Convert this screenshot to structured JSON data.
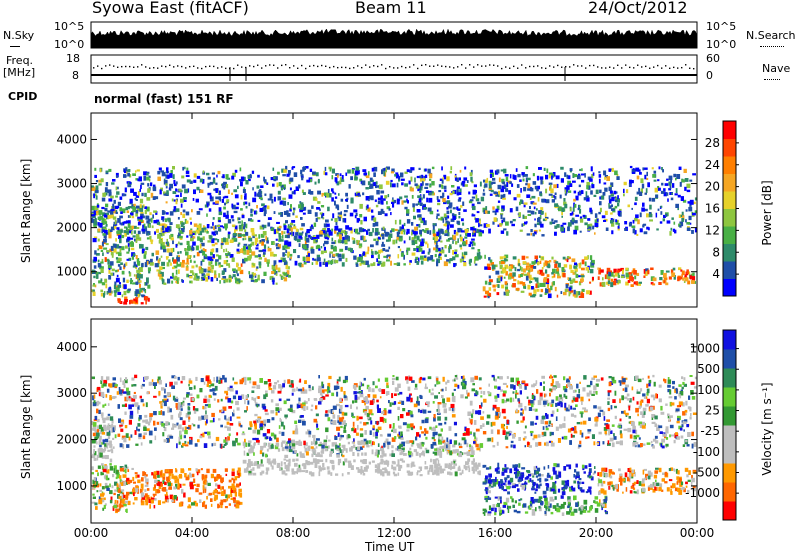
{
  "header": {
    "station": "Syowa East (fitACF)",
    "beam": "Beam 11",
    "date": "24/Oct/2012"
  },
  "top_panel": {
    "nsky_label": "N.Sky",
    "nsearch_label": "N.Search",
    "ticks_left": [
      "10^5",
      "10^0"
    ],
    "ticks_right": [
      "10^5",
      "10^0"
    ]
  },
  "freq_panel": {
    "freq_label": "Freq.",
    "freq_unit": "[MHz]",
    "nave_label": "Nave",
    "ticks_left": [
      "18",
      "8"
    ],
    "ticks_right": [
      "60",
      "0"
    ]
  },
  "cpid": {
    "label": "CPID",
    "value": "normal (fast) 151 RF"
  },
  "colors": {
    "power_scale": [
      "#0000ff",
      "#1f4ea8",
      "#2e8b6a",
      "#49b045",
      "#8ec63f",
      "#e6d12a",
      "#f5a623",
      "#ff7f00",
      "#ff4500",
      "#ff0000"
    ],
    "velocity_scale": [
      "#ff0000",
      "#ff6600",
      "#ff9900",
      "#bebebe",
      "#bebebe",
      "#339933",
      "#66cc33",
      "#2e8b57",
      "#1f4fa8",
      "#1010e0"
    ]
  },
  "chart_data": [
    {
      "type": "heatmap",
      "name": "power",
      "ylabel": "Slant Range [km]",
      "xlabel": "",
      "yticks": [
        "1000",
        "2000",
        "3000",
        "4000"
      ],
      "ylim": [
        200,
        4600
      ],
      "x_ticks": [
        "00:00",
        "04:00",
        "08:00",
        "12:00",
        "16:00",
        "20:00",
        "00:00"
      ],
      "xlim_hours": [
        0,
        24
      ],
      "colorbar": {
        "label": "Power [dB]",
        "ticks": [
          "4",
          "8",
          "12",
          "16",
          "20",
          "24",
          "28"
        ]
      },
      "bands": [
        {
          "t0": 0.0,
          "t1": 2.5,
          "r0": 400,
          "r1": 2500,
          "weights": [
            1,
            2,
            3,
            3,
            2,
            1,
            0.5,
            0.3,
            0.2,
            0.1
          ]
        },
        {
          "t0": 1.0,
          "t1": 2.5,
          "r0": 250,
          "r1": 450,
          "weights": [
            0,
            0,
            0,
            0,
            0,
            0,
            0,
            0.3,
            1,
            3
          ]
        },
        {
          "t0": 2.5,
          "t1": 8.0,
          "r0": 700,
          "r1": 2100,
          "weights": [
            1,
            2,
            2,
            3,
            3,
            2,
            1,
            0.3,
            0.1,
            0
          ]
        },
        {
          "t0": 8.0,
          "t1": 15.5,
          "r0": 1100,
          "r1": 2000,
          "weights": [
            2,
            3,
            3,
            2,
            2,
            1,
            0.5,
            0.2,
            0,
            0
          ]
        },
        {
          "t0": 15.5,
          "t1": 20.0,
          "r0": 400,
          "r1": 1400,
          "weights": [
            0.5,
            1,
            2,
            2,
            2,
            2,
            2,
            2,
            1,
            0.5
          ]
        },
        {
          "t0": 20.0,
          "t1": 24.0,
          "r0": 650,
          "r1": 1100,
          "weights": [
            0,
            0.3,
            0.5,
            1,
            1,
            1,
            2,
            2,
            2,
            3
          ]
        },
        {
          "t0": 0.0,
          "t1": 24.0,
          "r0": 1800,
          "r1": 3400,
          "weights": [
            2,
            2,
            1,
            0.5,
            0.5,
            0.3,
            0.2,
            0,
            0,
            0
          ]
        }
      ]
    },
    {
      "type": "heatmap",
      "name": "velocity",
      "ylabel": "Slant Range [km]",
      "xlabel": "Time UT",
      "yticks": [
        "1000",
        "2000",
        "3000",
        "4000"
      ],
      "ylim": [
        200,
        4600
      ],
      "x_ticks": [
        "00:00",
        "04:00",
        "08:00",
        "12:00",
        "16:00",
        "20:00",
        "00:00"
      ],
      "xlim_hours": [
        0,
        24
      ],
      "colorbar": {
        "label": "Velocity [m s⁻¹]",
        "ticks": [
          "1000",
          "500",
          "100",
          "25",
          "-25",
          "-100",
          "-500",
          "-1000"
        ]
      },
      "bands": [
        {
          "t0": 0.0,
          "t1": 1.0,
          "r0": 1500,
          "r1": 2500,
          "weights": [
            0,
            0,
            0,
            3,
            3,
            1,
            0,
            0,
            0,
            0
          ]
        },
        {
          "t0": 0.0,
          "t1": 1.5,
          "r0": 400,
          "r1": 1500,
          "weights": [
            0.5,
            1,
            1,
            1,
            1,
            2,
            2,
            1,
            0.3,
            0
          ]
        },
        {
          "t0": 1.0,
          "t1": 6.0,
          "r0": 500,
          "r1": 1400,
          "weights": [
            1,
            3,
            4,
            0.5,
            0.5,
            0.3,
            0,
            0,
            0,
            0
          ]
        },
        {
          "t0": 6.0,
          "t1": 15.5,
          "r0": 1200,
          "r1": 1600,
          "weights": [
            0,
            0,
            0,
            4,
            4,
            0.3,
            0,
            0,
            0,
            0
          ]
        },
        {
          "t0": 6.0,
          "t1": 15.5,
          "r0": 1600,
          "r1": 2000,
          "weights": [
            0,
            0,
            0.2,
            2,
            2,
            0.5,
            0.3,
            0.5,
            0.3,
            0
          ]
        },
        {
          "t0": 15.5,
          "t1": 20.0,
          "r0": 800,
          "r1": 1500,
          "weights": [
            0,
            0,
            0,
            0.3,
            0.3,
            0.3,
            0.3,
            1,
            3,
            4
          ]
        },
        {
          "t0": 15.5,
          "t1": 20.5,
          "r0": 350,
          "r1": 800,
          "weights": [
            0,
            0,
            0.2,
            0.5,
            0.5,
            2,
            2,
            2,
            1,
            0.5
          ]
        },
        {
          "t0": 20.0,
          "t1": 24.0,
          "r0": 800,
          "r1": 1400,
          "weights": [
            0.5,
            2,
            3,
            1,
            1,
            0.5,
            0.3,
            0.2,
            0,
            0
          ]
        },
        {
          "t0": 0.0,
          "t1": 24.0,
          "r0": 1800,
          "r1": 3400,
          "weights": [
            0.5,
            0.5,
            0.5,
            1,
            1,
            0.5,
            0.5,
            0.5,
            1,
            0.5
          ]
        }
      ]
    }
  ]
}
